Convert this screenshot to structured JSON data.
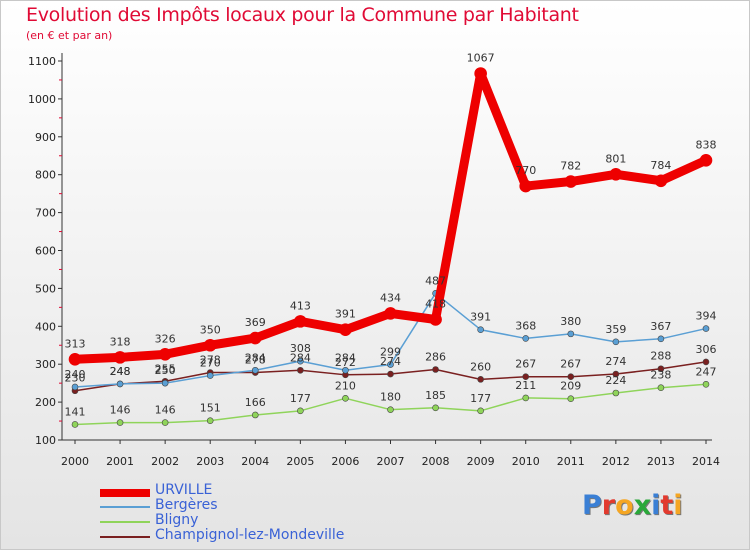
{
  "title": "Evolution des Impôts locaux pour la Commune par Habitant",
  "subtitle": "(en € et par an)",
  "logo": {
    "text": "Proxiti",
    "colors": [
      "#3a7fd5",
      "#e23a2e",
      "#f5a623",
      "#2aa83a",
      "#3a7fd5",
      "#e23a2e",
      "#f5a623"
    ]
  },
  "chart_data": {
    "type": "line",
    "x": [
      2000,
      2001,
      2002,
      2003,
      2004,
      2005,
      2006,
      2007,
      2008,
      2009,
      2010,
      2011,
      2012,
      2013,
      2014
    ],
    "ylim": [
      100,
      1100
    ],
    "yticks": [
      100,
      200,
      300,
      400,
      500,
      600,
      700,
      800,
      900,
      1000,
      1100
    ],
    "grid": false,
    "legend_position": "bottom-left",
    "series": [
      {
        "name": "URVILLE",
        "color": "#ee0000",
        "values": [
          313,
          318,
          326,
          350,
          369,
          413,
          391,
          434,
          418,
          1067,
          770,
          782,
          801,
          784,
          838
        ],
        "labels": [
          "313",
          "318",
          "326",
          "350",
          "369",
          "413",
          "391",
          "434",
          "418",
          "1067",
          "770",
          "782",
          "801",
          "784",
          "838"
        ]
      },
      {
        "name": "Bergères",
        "color": "#5a9fd4",
        "values": [
          240,
          248,
          250,
          270,
          284,
          308,
          284,
          299,
          487,
          391,
          368,
          380,
          359,
          367,
          394
        ],
        "labels": [
          "240",
          "248",
          "250",
          "270",
          "284",
          "308",
          "284",
          "299",
          "487",
          "391",
          "368",
          "380",
          "359",
          "367",
          "394"
        ]
      },
      {
        "name": "Bligny",
        "color": "#8fd45a",
        "values": [
          141,
          146,
          146,
          151,
          166,
          177,
          210,
          180,
          185,
          177,
          211,
          209,
          224,
          238,
          247
        ],
        "labels": [
          "141",
          "146",
          "146",
          "151",
          "166",
          "177",
          "210",
          "180",
          "185",
          "177",
          "211",
          "209",
          "224",
          "238",
          "247"
        ]
      },
      {
        "name": "Champignol-lez-Mondeville",
        "color": "#7a2020",
        "values": [
          230,
          248,
          255,
          278,
          278,
          284,
          272,
          274,
          286,
          260,
          267,
          267,
          274,
          288,
          306
        ],
        "labels": [
          "230",
          "248",
          "255",
          "278",
          "278",
          "284",
          "272",
          "274",
          "286",
          "260",
          "267",
          "267",
          "274",
          "288",
          "306"
        ]
      }
    ]
  }
}
